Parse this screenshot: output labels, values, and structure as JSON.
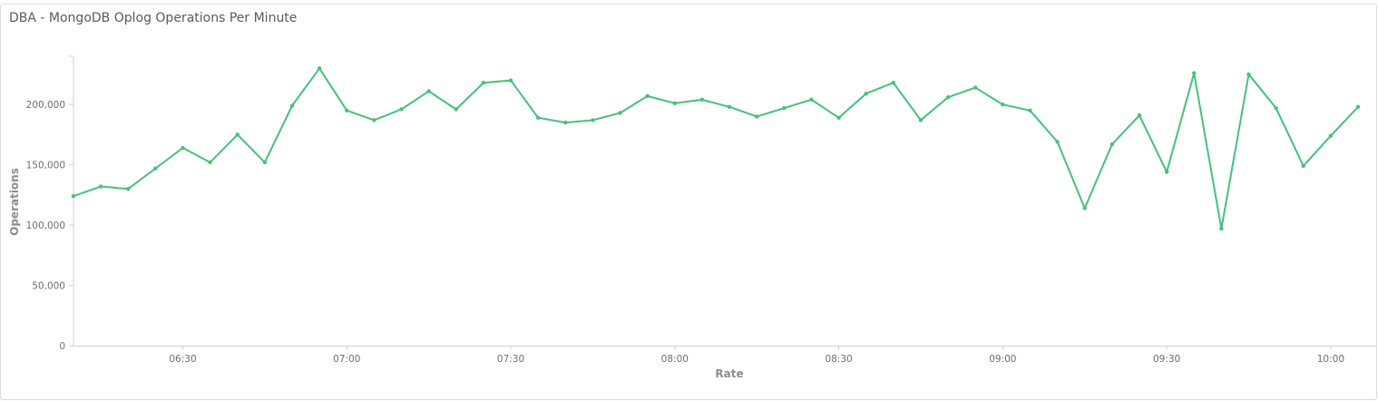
{
  "panel": {
    "title": "DBA - MongoDB Oplog Operations Per Minute"
  },
  "colors": {
    "series": "#47c17a",
    "axis": "#cfd2d6",
    "text": "#6b6f75"
  },
  "chart_data": {
    "type": "line",
    "title": "DBA - MongoDB Oplog Operations Per Minute",
    "xlabel": "Rate",
    "ylabel": "Operations",
    "ylim": [
      0,
      240000
    ],
    "yticks": [
      {
        "value": 0,
        "label": "0"
      },
      {
        "value": 50000,
        "label": "50,000"
      },
      {
        "value": 100000,
        "label": "100,000"
      },
      {
        "value": 150000,
        "label": "150,000"
      },
      {
        "value": 200000,
        "label": "200,000"
      }
    ],
    "xlim": [
      "06:10",
      "10:05"
    ],
    "xticks": [
      "06:30",
      "07:00",
      "07:30",
      "08:00",
      "08:30",
      "09:00",
      "09:30",
      "10:00"
    ],
    "grid": false,
    "legend": "none",
    "series": [
      {
        "x": [
          "06:10",
          "06:15",
          "06:20",
          "06:25",
          "06:30",
          "06:35",
          "06:40",
          "06:45",
          "06:50",
          "06:55",
          "07:00",
          "07:05",
          "07:10",
          "07:15",
          "07:20",
          "07:25",
          "07:30",
          "07:35",
          "07:40",
          "07:45",
          "07:50",
          "07:55",
          "08:00",
          "08:05",
          "08:10",
          "08:15",
          "08:20",
          "08:25",
          "08:30",
          "08:35",
          "08:40",
          "08:45",
          "08:50",
          "08:55",
          "09:00",
          "09:05",
          "09:10",
          "09:15",
          "09:20",
          "09:25",
          "09:30",
          "09:35",
          "09:40",
          "09:45",
          "09:50",
          "09:55",
          "10:00",
          "10:05"
        ],
        "values": [
          124000,
          132000,
          130000,
          147000,
          164000,
          152000,
          175000,
          152000,
          199000,
          230000,
          195000,
          187000,
          196000,
          211000,
          196000,
          218000,
          220000,
          189000,
          185000,
          187000,
          193000,
          207000,
          201000,
          204000,
          198000,
          190000,
          197000,
          204000,
          189000,
          209000,
          218000,
          187000,
          206000,
          214000,
          200000,
          195000,
          169000,
          114000,
          167000,
          191000,
          144000,
          226000,
          97000,
          225000,
          197000,
          149000,
          174000,
          198000
        ]
      }
    ]
  }
}
